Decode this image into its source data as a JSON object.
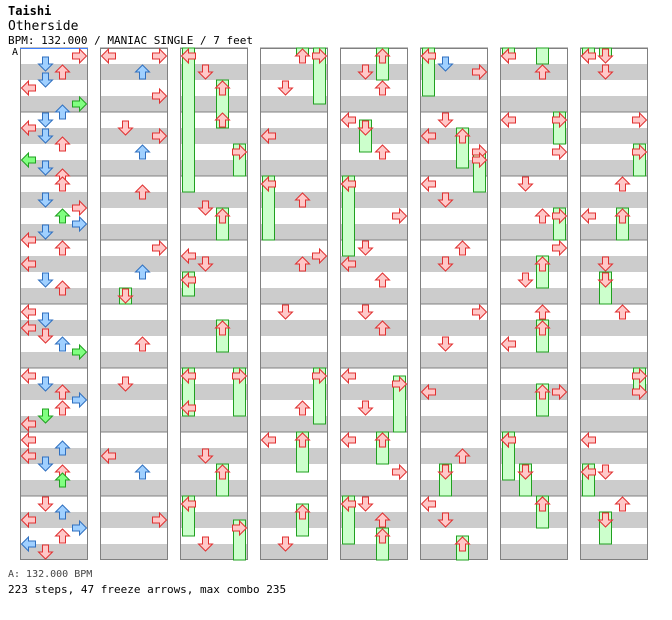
{
  "header": {
    "artist": "Taishi",
    "song": "Otherside",
    "meta": "BPM: 132.000 / MANIAC SINGLE / 7 feet"
  },
  "marker_label": "A",
  "status_bpm": "A: 132.000 BPM",
  "footer": "223 steps, 47 freeze arrows, max combo 235",
  "colors": {
    "stripe": "#cccccc",
    "border": "#808080",
    "red": "#ffc8c8",
    "red_edge": "#e03030",
    "blue": "#a0d0ff",
    "blue_edge": "#3070c0",
    "green": "#80ff80",
    "green_edge": "#20a020",
    "pink": "#ffc8ff",
    "pink_edge": "#c040c0",
    "freeze_fill": "#ccffcc",
    "freeze_edge": "#20a020"
  },
  "chart_data": {
    "type": "step-chart",
    "mode": "MANIAC SINGLE",
    "bpm": 132.0,
    "total_steps": 223,
    "freeze_arrows": 47,
    "max_combo": 235,
    "measures_per_column": 8,
    "column_count": 8,
    "lanes": [
      "left",
      "down",
      "up",
      "right"
    ],
    "notes": [
      {
        "m": 1,
        "b": 1,
        "lane": "right",
        "q": 4
      },
      {
        "m": 1,
        "b": 1.5,
        "lane": "down",
        "q": 8
      },
      {
        "m": 1,
        "b": 2,
        "lane": "up",
        "q": 4
      },
      {
        "m": 1,
        "b": 2.5,
        "lane": "down",
        "q": 8
      },
      {
        "m": 1,
        "b": 3,
        "lane": "left",
        "q": 4
      },
      {
        "m": 1,
        "b": 4,
        "lane": "right",
        "q": 16
      },
      {
        "m": 1,
        "b": 4.5,
        "lane": "up",
        "q": 8
      },
      {
        "m": 2,
        "b": 1,
        "lane": "down",
        "q": 8
      },
      {
        "m": 2,
        "b": 1.5,
        "lane": "left",
        "q": 4
      },
      {
        "m": 2,
        "b": 2,
        "lane": "down",
        "q": 8
      },
      {
        "m": 2,
        "b": 2.5,
        "lane": "up",
        "q": 4
      },
      {
        "m": 2,
        "b": 3.5,
        "lane": "left",
        "q": 16
      },
      {
        "m": 2,
        "b": 4,
        "lane": "down",
        "q": 8
      },
      {
        "m": 2,
        "b": 4.5,
        "lane": "up",
        "q": 4
      },
      {
        "m": 3,
        "b": 1,
        "lane": "up",
        "q": 4
      },
      {
        "m": 3,
        "b": 2,
        "lane": "down",
        "q": 8
      },
      {
        "m": 3,
        "b": 2.5,
        "lane": "right",
        "q": 4
      },
      {
        "m": 3,
        "b": 3,
        "lane": "up",
        "q": 16
      },
      {
        "m": 3,
        "b": 3.5,
        "lane": "right",
        "q": 8
      },
      {
        "m": 3,
        "b": 4,
        "lane": "down",
        "q": 8
      },
      {
        "m": 3,
        "b": 4.5,
        "lane": "left",
        "q": 4
      },
      {
        "m": 4,
        "b": 1,
        "lane": "up",
        "q": 4
      },
      {
        "m": 4,
        "b": 2,
        "lane": "left",
        "q": 4
      },
      {
        "m": 4,
        "b": 3,
        "lane": "down",
        "q": 8
      },
      {
        "m": 4,
        "b": 3.5,
        "lane": "up",
        "q": 4
      },
      {
        "m": 5,
        "b": 1,
        "lane": "left",
        "q": 4
      },
      {
        "m": 5,
        "b": 1.5,
        "lane": "down",
        "q": 8
      },
      {
        "m": 5,
        "b": 2,
        "lane": "left",
        "q": 4
      },
      {
        "m": 5,
        "b": 2.5,
        "lane": "down",
        "q": 4
      },
      {
        "m": 5,
        "b": 3,
        "lane": "up",
        "q": 8
      },
      {
        "m": 5,
        "b": 3.5,
        "lane": "right",
        "q": 16
      },
      {
        "m": 6,
        "b": 1,
        "lane": "left",
        "q": 4
      },
      {
        "m": 6,
        "b": 1.5,
        "lane": "down",
        "q": 8
      },
      {
        "m": 6,
        "b": 2,
        "lane": "up",
        "q": 4
      },
      {
        "m": 6,
        "b": 2.5,
        "lane": "right",
        "q": 8
      },
      {
        "m": 6,
        "b": 3,
        "lane": "up",
        "q": 4
      },
      {
        "m": 6,
        "b": 3.5,
        "lane": "down",
        "q": 16
      },
      {
        "m": 6,
        "b": 4,
        "lane": "left",
        "q": 4
      },
      {
        "m": 7,
        "b": 1,
        "lane": "left",
        "q": 4
      },
      {
        "m": 7,
        "b": 1.5,
        "lane": "up",
        "q": 8
      },
      {
        "m": 7,
        "b": 2,
        "lane": "left",
        "q": 4
      },
      {
        "m": 7,
        "b": 2.5,
        "lane": "down",
        "q": 8
      },
      {
        "m": 7,
        "b": 3,
        "lane": "up",
        "q": 4
      },
      {
        "m": 7,
        "b": 3.5,
        "lane": "up",
        "q": 16
      },
      {
        "m": 8,
        "b": 1,
        "lane": "down",
        "q": 4
      },
      {
        "m": 8,
        "b": 1.5,
        "lane": "up",
        "q": 8
      },
      {
        "m": 8,
        "b": 2,
        "lane": "left",
        "q": 4
      },
      {
        "m": 8,
        "b": 2.5,
        "lane": "right",
        "q": 8
      },
      {
        "m": 8,
        "b": 3,
        "lane": "up",
        "q": 4
      },
      {
        "m": 8,
        "b": 3.5,
        "lane": "left",
        "q": 8
      },
      {
        "m": 8,
        "b": 4,
        "lane": "down",
        "q": 4
      },
      {
        "m": 9,
        "b": 1,
        "lane": "left",
        "q": 4
      },
      {
        "m": 9,
        "b": 1,
        "lane": "right",
        "q": 4
      },
      {
        "m": 9,
        "b": 2,
        "lane": "up",
        "q": 8
      },
      {
        "m": 9,
        "b": 3.5,
        "lane": "right",
        "q": 4
      },
      {
        "m": 10,
        "b": 1.5,
        "lane": "down",
        "q": 4
      },
      {
        "m": 10,
        "b": 2,
        "lane": "right",
        "q": 4
      },
      {
        "m": 10,
        "b": 3,
        "lane": "up",
        "q": 8
      },
      {
        "m": 11,
        "b": 1.5,
        "lane": "up",
        "q": 4
      },
      {
        "m": 12,
        "b": 1,
        "lane": "right",
        "q": 4
      },
      {
        "m": 12,
        "b": 2.5,
        "lane": "up",
        "q": 8
      },
      {
        "m": 13,
        "b": 3,
        "lane": "up",
        "q": 4
      },
      {
        "m": 14,
        "b": 1.5,
        "lane": "down",
        "q": 4
      },
      {
        "m": 15,
        "b": 2,
        "lane": "left",
        "q": 4
      },
      {
        "m": 15,
        "b": 3,
        "lane": "up",
        "q": 8
      },
      {
        "m": 16,
        "b": 2,
        "lane": "right",
        "q": 4
      },
      {
        "m": 17,
        "b": 2,
        "lane": "down",
        "q": 4
      },
      {
        "m": 18,
        "b": 1,
        "lane": "up",
        "q": 4
      },
      {
        "m": 19,
        "b": 2.5,
        "lane": "down",
        "q": 4
      },
      {
        "m": 20,
        "b": 1.5,
        "lane": "left",
        "q": 4
      },
      {
        "m": 20,
        "b": 2,
        "lane": "down",
        "q": 4
      },
      {
        "m": 22,
        "b": 3,
        "lane": "left",
        "q": 4
      },
      {
        "m": 23,
        "b": 2,
        "lane": "down",
        "q": 4
      },
      {
        "m": 24,
        "b": 3.5,
        "lane": "down",
        "q": 4
      },
      {
        "m": 25,
        "b": 3,
        "lane": "down",
        "q": 4
      },
      {
        "m": 26,
        "b": 2,
        "lane": "left",
        "q": 4
      },
      {
        "m": 27,
        "b": 2,
        "lane": "up",
        "q": 4
      },
      {
        "m": 28,
        "b": 1.5,
        "lane": "right",
        "q": 4
      },
      {
        "m": 28,
        "b": 2,
        "lane": "up",
        "q": 4
      },
      {
        "m": 29,
        "b": 1,
        "lane": "down",
        "q": 4
      },
      {
        "m": 30,
        "b": 3,
        "lane": "up",
        "q": 4
      },
      {
        "m": 31,
        "b": 1,
        "lane": "left",
        "q": 4
      },
      {
        "m": 32,
        "b": 3.5,
        "lane": "down",
        "q": 4
      },
      {
        "m": 33,
        "b": 2,
        "lane": "down",
        "q": 4
      },
      {
        "m": 33,
        "b": 3,
        "lane": "up",
        "q": 4
      },
      {
        "m": 34,
        "b": 1,
        "lane": "left",
        "q": 4
      },
      {
        "m": 34,
        "b": 3,
        "lane": "up",
        "q": 4
      },
      {
        "m": 35,
        "b": 1,
        "lane": "left",
        "q": 4
      },
      {
        "m": 35,
        "b": 3,
        "lane": "right",
        "q": 4
      },
      {
        "m": 36,
        "b": 1,
        "lane": "down",
        "q": 4
      },
      {
        "m": 36,
        "b": 2,
        "lane": "left",
        "q": 4
      },
      {
        "m": 36,
        "b": 3,
        "lane": "up",
        "q": 4
      },
      {
        "m": 37,
        "b": 1,
        "lane": "down",
        "q": 4
      },
      {
        "m": 37,
        "b": 2,
        "lane": "up",
        "q": 4
      },
      {
        "m": 38,
        "b": 1,
        "lane": "left",
        "q": 4
      },
      {
        "m": 38,
        "b": 3,
        "lane": "down",
        "q": 4
      },
      {
        "m": 39,
        "b": 1,
        "lane": "left",
        "q": 4
      },
      {
        "m": 39,
        "b": 3,
        "lane": "right",
        "q": 4
      },
      {
        "m": 40,
        "b": 1,
        "lane": "down",
        "q": 4
      },
      {
        "m": 40,
        "b": 2,
        "lane": "up",
        "q": 4
      },
      {
        "m": 41,
        "b": 1,
        "lane": "left",
        "q": 4
      },
      {
        "m": 41,
        "b": 1.5,
        "lane": "down",
        "q": 8
      },
      {
        "m": 41,
        "b": 2,
        "lane": "right",
        "q": 4
      },
      {
        "m": 42,
        "b": 1,
        "lane": "down",
        "q": 4
      },
      {
        "m": 42,
        "b": 2,
        "lane": "left",
        "q": 4
      },
      {
        "m": 42,
        "b": 3,
        "lane": "right",
        "q": 4
      },
      {
        "m": 43,
        "b": 1,
        "lane": "left",
        "q": 4
      },
      {
        "m": 43,
        "b": 2,
        "lane": "down",
        "q": 4
      },
      {
        "m": 44,
        "b": 1,
        "lane": "up",
        "q": 4
      },
      {
        "m": 44,
        "b": 2,
        "lane": "down",
        "q": 4
      },
      {
        "m": 45,
        "b": 1,
        "lane": "right",
        "q": 4
      },
      {
        "m": 45,
        "b": 3,
        "lane": "down",
        "q": 4
      },
      {
        "m": 46,
        "b": 2,
        "lane": "left",
        "q": 4
      },
      {
        "m": 47,
        "b": 2,
        "lane": "up",
        "q": 4
      },
      {
        "m": 48,
        "b": 1,
        "lane": "left",
        "q": 4
      },
      {
        "m": 48,
        "b": 2,
        "lane": "down",
        "q": 4
      },
      {
        "m": 49,
        "b": 1,
        "lane": "left",
        "q": 4
      },
      {
        "m": 49,
        "b": 2,
        "lane": "up",
        "q": 4
      },
      {
        "m": 50,
        "b": 1,
        "lane": "left",
        "q": 4
      },
      {
        "m": 50,
        "b": 3,
        "lane": "right",
        "q": 4
      },
      {
        "m": 51,
        "b": 1,
        "lane": "down",
        "q": 4
      },
      {
        "m": 51,
        "b": 3,
        "lane": "up",
        "q": 4
      },
      {
        "m": 52,
        "b": 1,
        "lane": "right",
        "q": 4
      },
      {
        "m": 52,
        "b": 3,
        "lane": "down",
        "q": 4
      },
      {
        "m": 53,
        "b": 1,
        "lane": "up",
        "q": 4
      },
      {
        "m": 53,
        "b": 3,
        "lane": "left",
        "q": 4
      },
      {
        "m": 54,
        "b": 2,
        "lane": "right",
        "q": 4
      },
      {
        "m": 55,
        "b": 1,
        "lane": "left",
        "q": 4
      },
      {
        "m": 55,
        "b": 3,
        "lane": "down",
        "q": 4
      },
      {
        "m": 56,
        "b": 1,
        "lane": "up",
        "q": 4
      },
      {
        "m": 57,
        "b": 1,
        "lane": "left",
        "q": 4
      },
      {
        "m": 57,
        "b": 2,
        "lane": "down",
        "q": 4
      },
      {
        "m": 58,
        "b": 1,
        "lane": "right",
        "q": 4
      },
      {
        "m": 59,
        "b": 1,
        "lane": "up",
        "q": 4
      },
      {
        "m": 59,
        "b": 3,
        "lane": "left",
        "q": 4
      },
      {
        "m": 60,
        "b": 2,
        "lane": "down",
        "q": 4
      },
      {
        "m": 61,
        "b": 1,
        "lane": "up",
        "q": 4
      },
      {
        "m": 62,
        "b": 2,
        "lane": "right",
        "q": 4
      },
      {
        "m": 63,
        "b": 1,
        "lane": "left",
        "q": 4
      },
      {
        "m": 63,
        "b": 3,
        "lane": "down",
        "q": 4
      },
      {
        "m": 64,
        "b": 1,
        "lane": "up",
        "q": 4
      }
    ],
    "freezes": [
      {
        "m": 17,
        "b": 1,
        "lane": "left",
        "len_beats": 9
      },
      {
        "m": 17,
        "b": 3,
        "lane": "up",
        "len_beats": 3
      },
      {
        "m": 18,
        "b": 3,
        "lane": "right",
        "len_beats": 2
      },
      {
        "m": 19,
        "b": 3,
        "lane": "up",
        "len_beats": 2
      },
      {
        "m": 20,
        "b": 3,
        "lane": "left",
        "len_beats": 1.5
      },
      {
        "m": 21,
        "b": 2,
        "lane": "up",
        "len_beats": 2
      },
      {
        "m": 22,
        "b": 1,
        "lane": "left",
        "len_beats": 3
      },
      {
        "m": 22,
        "b": 1,
        "lane": "right",
        "len_beats": 3
      },
      {
        "m": 23,
        "b": 3,
        "lane": "up",
        "len_beats": 2
      },
      {
        "m": 24,
        "b": 1,
        "lane": "left",
        "len_beats": 2.5
      },
      {
        "m": 24,
        "b": 2.5,
        "lane": "right",
        "len_beats": 6
      },
      {
        "m": 25,
        "b": 1,
        "lane": "up",
        "len_beats": 0.5
      },
      {
        "m": 25,
        "b": 1,
        "lane": "right",
        "len_beats": 0.5
      },
      {
        "m": 27,
        "b": 1,
        "lane": "left",
        "len_beats": 4
      },
      {
        "m": 30,
        "b": 1,
        "lane": "right",
        "len_beats": 3.5
      },
      {
        "m": 31,
        "b": 1,
        "lane": "up",
        "len_beats": 2.5
      },
      {
        "m": 32,
        "b": 1.5,
        "lane": "up",
        "len_beats": 2
      },
      {
        "m": 33,
        "b": 1,
        "lane": "up",
        "len_beats": 2
      },
      {
        "m": 34,
        "b": 1.5,
        "lane": "down",
        "len_beats": 2
      },
      {
        "m": 35,
        "b": 1,
        "lane": "left",
        "len_beats": 5
      },
      {
        "m": 38,
        "b": 1.5,
        "lane": "right",
        "len_beats": 3.5
      },
      {
        "m": 39,
        "b": 1,
        "lane": "up",
        "len_beats": 2
      },
      {
        "m": 40,
        "b": 1,
        "lane": "left",
        "len_beats": 3
      },
      {
        "m": 40,
        "b": 3,
        "lane": "up",
        "len_beats": 2
      },
      {
        "m": 41,
        "b": 1,
        "lane": "left",
        "len_beats": 3
      },
      {
        "m": 42,
        "b": 2,
        "lane": "up",
        "len_beats": 2.5
      },
      {
        "m": 42,
        "b": 3.5,
        "lane": "right",
        "len_beats": 2.5
      },
      {
        "m": 47,
        "b": 3,
        "lane": "down",
        "len_beats": 2
      },
      {
        "m": 48,
        "b": 3.5,
        "lane": "up",
        "len_beats": 2.5
      },
      {
        "m": 49,
        "b": 1,
        "lane": "left",
        "len_beats": 0.5
      },
      {
        "m": 50,
        "b": 1,
        "lane": "right",
        "len_beats": 2
      },
      {
        "m": 51,
        "b": 3,
        "lane": "right",
        "len_beats": 2
      },
      {
        "m": 52,
        "b": 2,
        "lane": "up",
        "len_beats": 2
      },
      {
        "m": 53,
        "b": 2,
        "lane": "up",
        "len_beats": 2
      },
      {
        "m": 54,
        "b": 2,
        "lane": "up",
        "len_beats": 2
      },
      {
        "m": 55,
        "b": 1,
        "lane": "left",
        "len_beats": 3
      },
      {
        "m": 55,
        "b": 3,
        "lane": "down",
        "len_beats": 2
      },
      {
        "m": 56,
        "b": 1,
        "lane": "up",
        "len_beats": 2
      },
      {
        "m": 57,
        "b": 1,
        "lane": "left",
        "len_beats": 0.5
      },
      {
        "m": 57,
        "b": 1,
        "lane": "down",
        "len_beats": 0.5
      },
      {
        "m": 58,
        "b": 3,
        "lane": "right",
        "len_beats": 2
      },
      {
        "m": 59,
        "b": 3,
        "lane": "up",
        "len_beats": 2
      },
      {
        "m": 60,
        "b": 3,
        "lane": "down",
        "len_beats": 2
      },
      {
        "m": 62,
        "b": 1,
        "lane": "right",
        "len_beats": 1.5
      },
      {
        "m": 12,
        "b": 4,
        "lane": "down",
        "len_beats": 1
      },
      {
        "m": 63,
        "b": 3,
        "lane": "left",
        "len_beats": 2
      },
      {
        "m": 64,
        "b": 2,
        "lane": "down",
        "len_beats": 2
      }
    ]
  }
}
